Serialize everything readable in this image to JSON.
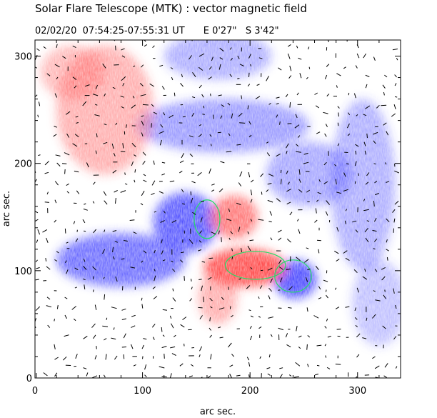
{
  "header": {
    "title": "Solar Flare Telescope (MTK) : vector magnetic field",
    "date": "02/02/20",
    "time_range": "07:54:25-07:55:31 UT",
    "position": "E 0'27\"   S 3'42\""
  },
  "axes": {
    "xlabel": "arc sec.",
    "ylabel": "arc sec.",
    "xlim": [
      0,
      340
    ],
    "ylim": [
      0,
      315
    ],
    "x_ticks": [
      0,
      100,
      200,
      300
    ],
    "y_ticks": [
      0,
      100,
      200,
      300
    ]
  },
  "colors": {
    "positive_polarity": "#ff3c3c",
    "negative_polarity": "#3c3cff",
    "contour": "#22dd66",
    "vector": "#000000",
    "frame": "#000000"
  },
  "features": {
    "positive_regions": [
      {
        "name": "upper-left-positive",
        "center": [
          65,
          250
        ],
        "radius": [
          45,
          60
        ],
        "strength": 0.45
      },
      {
        "name": "upper-left-positive-b",
        "center": [
          35,
          285
        ],
        "radius": [
          30,
          25
        ],
        "strength": 0.4
      },
      {
        "name": "central-positive",
        "center": [
          185,
          150
        ],
        "radius": [
          22,
          20
        ],
        "strength": 0.75
      },
      {
        "name": "core-positive",
        "center": [
          195,
          103
        ],
        "radius": [
          38,
          18
        ],
        "strength": 0.95
      },
      {
        "name": "core-positive-b",
        "center": [
          208,
          100
        ],
        "radius": [
          18,
          12
        ],
        "strength": 1.0
      },
      {
        "name": "lower-positive-tail",
        "center": [
          170,
          75
        ],
        "radius": [
          18,
          25
        ],
        "strength": 0.45
      }
    ],
    "negative_regions": [
      {
        "name": "left-negative-lobe",
        "center": [
          80,
          110
        ],
        "radius": [
          60,
          25
        ],
        "strength": 0.8
      },
      {
        "name": "central-negative",
        "center": [
          140,
          145
        ],
        "radius": [
          30,
          28
        ],
        "strength": 0.9
      },
      {
        "name": "right-negative-core",
        "center": [
          242,
          92
        ],
        "radius": [
          20,
          18
        ],
        "strength": 1.0
      },
      {
        "name": "upper-center-negative",
        "center": [
          175,
          235
        ],
        "radius": [
          80,
          25
        ],
        "strength": 0.55
      },
      {
        "name": "top-negative",
        "center": [
          170,
          300
        ],
        "radius": [
          50,
          22
        ],
        "strength": 0.45
      },
      {
        "name": "right-negative",
        "center": [
          305,
          180
        ],
        "radius": [
          30,
          80
        ],
        "strength": 0.45
      },
      {
        "name": "far-right-negative",
        "center": [
          320,
          70
        ],
        "radius": [
          25,
          40
        ],
        "strength": 0.35
      },
      {
        "name": "mid-negative",
        "center": [
          255,
          190
        ],
        "radius": [
          40,
          30
        ],
        "strength": 0.5
      }
    ],
    "contours": [
      {
        "name": "contour-upper",
        "center": [
          160,
          148
        ],
        "radius": [
          12,
          18
        ]
      },
      {
        "name": "contour-core",
        "center": [
          205,
          105
        ],
        "radius": [
          28,
          13
        ]
      },
      {
        "name": "contour-right",
        "center": [
          240,
          95
        ],
        "radius": [
          17,
          15
        ]
      }
    ]
  }
}
